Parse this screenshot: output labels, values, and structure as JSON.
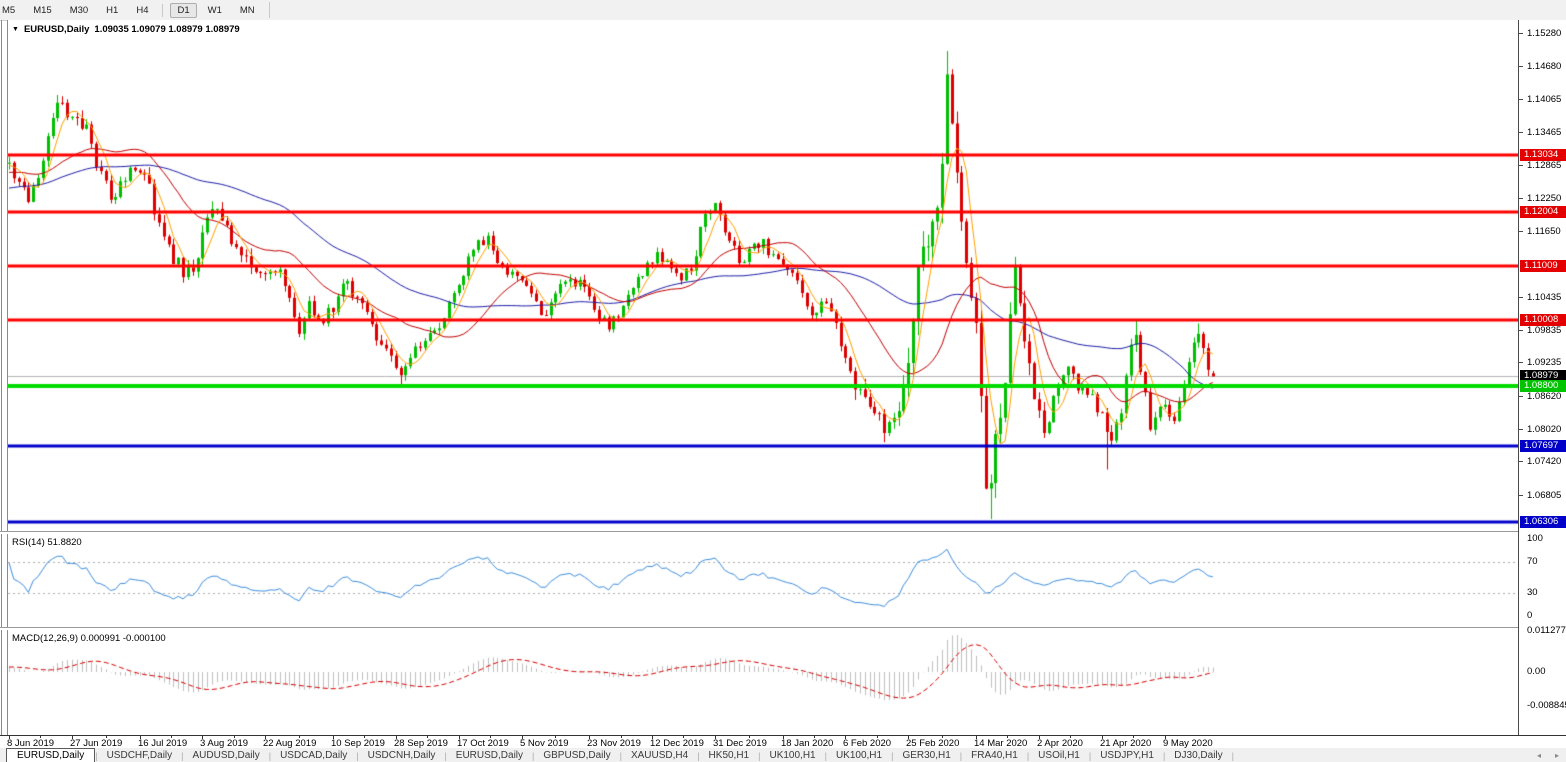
{
  "toolbar": {
    "timeframes": [
      "M5",
      "M15",
      "M30",
      "H1",
      "H4",
      "D1",
      "W1",
      "MN"
    ],
    "active": "D1"
  },
  "chart_title": {
    "dropdown_icon": "▼",
    "symbol": "EURUSD,Daily",
    "ohlc_text": "1.09035 1.09079 1.08979 1.08979"
  },
  "price_axis": {
    "ticks": [
      "1.15280",
      "1.14680",
      "1.14065",
      "1.13465",
      "1.12865",
      "1.12250",
      "1.11650",
      "1.10435",
      "1.09835",
      "1.09235",
      "1.08620",
      "1.08020",
      "1.07420",
      "1.06805"
    ],
    "tags": [
      {
        "text": "1.13034",
        "value": 1.13034,
        "bg": "#e40000",
        "fg": "#ffffff"
      },
      {
        "text": "1.12004",
        "value": 1.12004,
        "bg": "#e40000",
        "fg": "#ffffff"
      },
      {
        "text": "1.11009",
        "value": 1.11009,
        "bg": "#e40000",
        "fg": "#ffffff"
      },
      {
        "text": "1.10008",
        "value": 1.10008,
        "bg": "#e40000",
        "fg": "#ffffff"
      },
      {
        "text": "1.08979",
        "value": 1.08979,
        "bg": "#000000",
        "fg": "#ffffff"
      },
      {
        "text": "1.08800",
        "value": 1.088,
        "bg": "#00c400",
        "fg": "#ffffff"
      },
      {
        "text": "1.07697",
        "value": 1.07697,
        "bg": "#0000c8",
        "fg": "#ffffff"
      },
      {
        "text": "1.06306",
        "value": 1.06306,
        "bg": "#0000c8",
        "fg": "#ffffff"
      }
    ]
  },
  "chart_data": {
    "type": "candlestick",
    "symbol": "EURUSD",
    "timeframe": "Daily",
    "visible_price_top": 1.1528,
    "visible_price_bottom": 1.06205,
    "date_start": "8 Jun 2019",
    "date_end": "22 May 2020",
    "bar_count": 250,
    "last_bar_ohlc": {
      "open": 1.09035,
      "high": 1.09079,
      "low": 1.08979,
      "close": 1.08979
    },
    "up_color": "#00be00",
    "down_color": "#dc0000",
    "current_price_line": {
      "value": 1.08979,
      "color": "#b4b4b4"
    },
    "horizontal_lines": [
      {
        "value": 1.13034,
        "color": "#ff0000",
        "width": 3,
        "role": "resistance"
      },
      {
        "value": 1.12004,
        "color": "#ff0000",
        "width": 3,
        "role": "resistance"
      },
      {
        "value": 1.11009,
        "color": "#ff0000",
        "width": 3,
        "role": "resistance"
      },
      {
        "value": 1.10008,
        "color": "#ff0000",
        "width": 3,
        "role": "resistance"
      },
      {
        "value": 1.088,
        "color": "#00dc00",
        "width": 4,
        "role": "support"
      },
      {
        "value": 1.07697,
        "color": "#0000cc",
        "width": 3,
        "role": "support"
      },
      {
        "value": 1.06306,
        "color": "#0000cc",
        "width": 3,
        "role": "support"
      }
    ],
    "moving_averages": [
      {
        "name": "fast",
        "period": 5,
        "color": "#ffa000"
      },
      {
        "name": "medium",
        "period": 20,
        "color": "#c00000"
      },
      {
        "name": "slow",
        "period": 50,
        "color": "#1c1ca8"
      }
    ],
    "close_anchors": [
      [
        0,
        1.129
      ],
      [
        2,
        1.1255
      ],
      [
        4,
        1.1218
      ],
      [
        6,
        1.1262
      ],
      [
        9,
        1.1372
      ],
      [
        11,
        1.14
      ],
      [
        13,
        1.1374
      ],
      [
        16,
        1.136
      ],
      [
        18,
        1.1282
      ],
      [
        21,
        1.1222
      ],
      [
        23,
        1.1256
      ],
      [
        26,
        1.1276
      ],
      [
        28,
        1.1268
      ],
      [
        31,
        1.118
      ],
      [
        33,
        1.114
      ],
      [
        36,
        1.108
      ],
      [
        38,
        1.109
      ],
      [
        40,
        1.1162
      ],
      [
        42,
        1.1205
      ],
      [
        45,
        1.1175
      ],
      [
        47,
        1.1135
      ],
      [
        50,
        1.1098
      ],
      [
        53,
        1.1086
      ],
      [
        56,
        1.1094
      ],
      [
        58,
        1.1042
      ],
      [
        60,
        1.0976
      ],
      [
        62,
        1.1036
      ],
      [
        64,
        1.1002
      ],
      [
        67,
        1.1016
      ],
      [
        69,
        1.1068
      ],
      [
        72,
        1.1042
      ],
      [
        74,
        1.1016
      ],
      [
        77,
        1.0956
      ],
      [
        79,
        1.0936
      ],
      [
        81,
        1.09
      ],
      [
        83,
        1.0932
      ],
      [
        86,
        1.0963
      ],
      [
        89,
        1.0986
      ],
      [
        91,
        1.1034
      ],
      [
        94,
        1.1082
      ],
      [
        96,
        1.113
      ],
      [
        99,
        1.1156
      ],
      [
        101,
        1.1106
      ],
      [
        104,
        1.109
      ],
      [
        106,
        1.1074
      ],
      [
        109,
        1.1036
      ],
      [
        111,
        1.101
      ],
      [
        113,
        1.105
      ],
      [
        116,
        1.1076
      ],
      [
        119,
        1.1062
      ],
      [
        121,
        1.102
      ],
      [
        124,
        1.0984
      ],
      [
        126,
        1.1006
      ],
      [
        129,
        1.106
      ],
      [
        131,
        1.1082
      ],
      [
        134,
        1.1126
      ],
      [
        136,
        1.111
      ],
      [
        139,
        1.1074
      ],
      [
        141,
        1.1092
      ],
      [
        144,
        1.1196
      ],
      [
        146,
        1.1216
      ],
      [
        148,
        1.1162
      ],
      [
        151,
        1.1106
      ],
      [
        153,
        1.1132
      ],
      [
        156,
        1.115
      ],
      [
        158,
        1.1122
      ],
      [
        161,
        1.1094
      ],
      [
        163,
        1.1074
      ],
      [
        166,
        1.101
      ],
      [
        169,
        1.1032
      ],
      [
        171,
        1.0996
      ],
      [
        173,
        1.0932
      ],
      [
        176,
        1.0874
      ],
      [
        178,
        1.0842
      ],
      [
        181,
        1.0794
      ],
      [
        183,
        1.0822
      ],
      [
        185,
        1.0882
      ],
      [
        187,
        1.1002
      ],
      [
        189,
        1.1136
      ],
      [
        191,
        1.1182
      ],
      [
        193,
        1.1288
      ],
      [
        194,
        1.1452
      ],
      [
        195,
        1.1362
      ],
      [
        196,
        1.1272
      ],
      [
        197,
        1.1182
      ],
      [
        198,
        1.1106
      ],
      [
        199,
        1.1042
      ],
      [
        200,
        1.0996
      ],
      [
        201,
        1.0862
      ],
      [
        202,
        1.0692
      ],
      [
        203,
        1.0702
      ],
      [
        204,
        1.0792
      ],
      [
        205,
        1.0822
      ],
      [
        206,
        1.0886
      ],
      [
        207,
        1.1012
      ],
      [
        208,
        1.1102
      ],
      [
        209,
        1.1032
      ],
      [
        210,
        1.0962
      ],
      [
        211,
        1.0922
      ],
      [
        212,
        1.0856
      ],
      [
        214,
        1.0794
      ],
      [
        216,
        1.0862
      ],
      [
        218,
        1.09
      ],
      [
        219,
        1.0916
      ],
      [
        221,
        1.0872
      ],
      [
        223,
        1.0864
      ],
      [
        225,
        1.0832
      ],
      [
        227,
        1.0796
      ],
      [
        228,
        1.078
      ],
      [
        230,
        1.083
      ],
      [
        232,
        1.0956
      ],
      [
        233,
        1.0974
      ],
      [
        234,
        1.0906
      ],
      [
        236,
        1.08
      ],
      [
        238,
        1.0842
      ],
      [
        240,
        1.0824
      ],
      [
        241,
        1.0816
      ],
      [
        243,
        1.0882
      ],
      [
        244,
        1.0924
      ],
      [
        245,
        1.096
      ],
      [
        246,
        1.0976
      ],
      [
        247,
        1.095
      ],
      [
        248,
        1.091
      ],
      [
        249,
        1.08979
      ]
    ],
    "wick_overrides": {
      "81": {
        "low": 1.0879
      },
      "181": {
        "low": 1.0777
      },
      "194": {
        "high": 1.1495
      },
      "203": {
        "low": 1.0636
      },
      "227": {
        "low": 1.0727
      },
      "233": {
        "high": 1.1
      },
      "246": {
        "high": 1.0995
      }
    },
    "volatility_eras": [
      [
        0,
        0.0016
      ],
      [
        55,
        0.0013
      ],
      [
        95,
        0.0011
      ],
      [
        140,
        0.0013
      ],
      [
        175,
        0.0022
      ],
      [
        186,
        0.0034
      ],
      [
        206,
        0.0026
      ],
      [
        215,
        0.0017
      ],
      [
        234,
        0.0013
      ]
    ]
  },
  "rsi": {
    "label": "RSI(14) 51.8820",
    "period": 14,
    "last_value": "51.8820",
    "line_color": "#3e8ede",
    "level_color": "#b0b0b0",
    "axis": [
      {
        "text": "100",
        "v": 100
      },
      {
        "text": "70",
        "v": 70
      },
      {
        "text": "30",
        "v": 30
      },
      {
        "text": "0",
        "v": 0
      }
    ],
    "dashed_levels": [
      70,
      30
    ]
  },
  "macd": {
    "label": "MACD(12,26,9) 0.000991 -0.000100",
    "params": "12,26,9",
    "values": [
      "0.000991",
      "-0.000100"
    ],
    "hist_color": "#c0c0c0",
    "signal_color": "#d40000",
    "axis": [
      {
        "text": "0.011277",
        "v": 0.011277
      },
      {
        "text": "0.00",
        "v": 0
      },
      {
        "text": "-0.008845",
        "v": -0.008845
      }
    ]
  },
  "date_axis": {
    "labels": [
      "8 Jun 2019",
      "27 Jun 2019",
      "16 Jul 2019",
      "3 Aug 2019",
      "22 Aug 2019",
      "10 Sep 2019",
      "28 Sep 2019",
      "17 Oct 2019",
      "5 Nov 2019",
      "23 Nov 2019",
      "12 Dec 2019",
      "31 Dec 2019",
      "18 Jan 2020",
      "6 Feb 2020",
      "25 Feb 2020",
      "14 Mar 2020",
      "2 Apr 2020",
      "21 Apr 2020",
      "9 May 2020"
    ]
  },
  "tabs": {
    "items": [
      "EURUSD,Daily",
      "USDCHF,Daily",
      "AUDUSD,Daily",
      "USDCAD,Daily",
      "USDCNH,Daily",
      "EURUSD,Daily",
      "GBPUSD,Daily",
      "XAUUSD,H4",
      "HK50,H1",
      "UK100,H1",
      "UK100,H1",
      "GER30,H1",
      "FRA40,H1",
      "USOil,H1",
      "USDJPY,H1",
      "DJ30,Daily"
    ],
    "active_index": 0,
    "prev_icon": "◂",
    "next_icon": "▸"
  }
}
